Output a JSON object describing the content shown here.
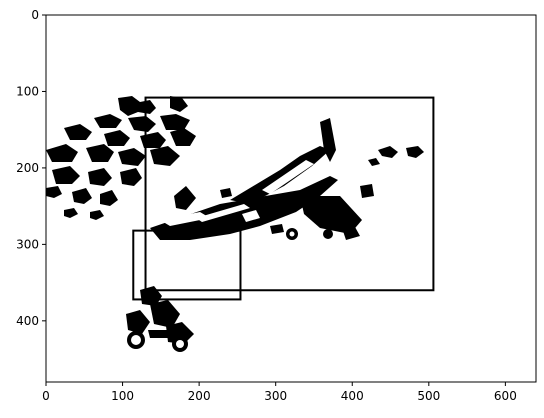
{
  "chart_data": {
    "type": "image",
    "title": "",
    "xlabel": "",
    "ylabel": "",
    "xlim": [
      0,
      640
    ],
    "ylim": [
      480,
      0
    ],
    "grid": false,
    "x_ticks": [
      0,
      100,
      200,
      300,
      400,
      500,
      600
    ],
    "y_ticks": [
      0,
      100,
      200,
      300,
      400
    ],
    "x_tick_labels": [
      "0",
      "100",
      "200",
      "300",
      "400",
      "500",
      "600"
    ],
    "y_tick_labels": [
      "0",
      "100",
      "200",
      "300",
      "400"
    ],
    "image_content": "binary black-and-white mask of a biplane and a motorcycle rider against foliage",
    "boxes": [
      {
        "x0": 130,
        "y0": 108,
        "x1": 506,
        "y1": 360,
        "color": "#000000"
      },
      {
        "x0": 114,
        "y0": 282,
        "x1": 254,
        "y1": 372,
        "color": "#000000"
      }
    ],
    "colors": {
      "foreground": "#000000",
      "background": "#ffffff",
      "box": "#000000"
    }
  }
}
